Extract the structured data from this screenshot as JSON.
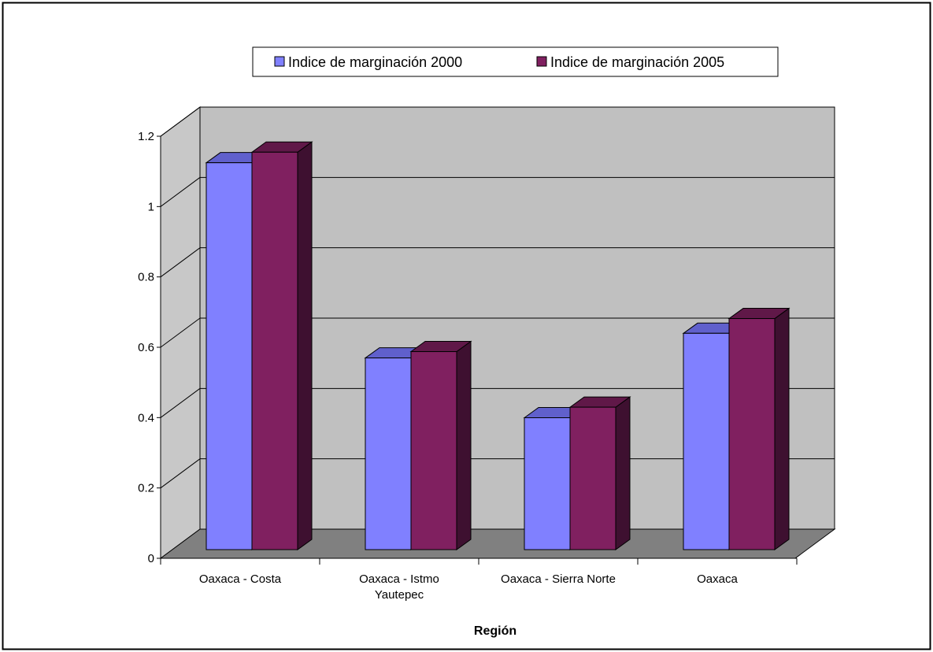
{
  "chart_data": {
    "type": "bar",
    "title": "",
    "xlabel": "Región",
    "ylabel": "",
    "categories": [
      [
        "Oaxaca - Costa"
      ],
      [
        "Oaxaca - Istmo",
        "Yautepec"
      ],
      [
        "Oaxaca - Sierra Norte"
      ],
      [
        "Oaxaca"
      ]
    ],
    "series": [
      {
        "name": "Indice de marginación 2000",
        "values": [
          1.1,
          0.545,
          0.375,
          0.615
        ]
      },
      {
        "name": "Indice de marginación 2005",
        "values": [
          1.13,
          0.563,
          0.405,
          0.657
        ]
      }
    ],
    "ylim": [
      0,
      1.2
    ],
    "yticks": [
      "0",
      "0.2",
      "0.4",
      "0.6",
      "0.8",
      "1",
      "1.2"
    ],
    "grid": true,
    "legend_position": "top",
    "colors": {
      "series_2000_front": "#8080ff",
      "series_2000_top": "#6060cc",
      "series_2000_side": "#40407f",
      "series_2005_front": "#802060",
      "series_2005_top": "#601848",
      "series_2005_side": "#3e1030",
      "back_wall": "#c0c0c0",
      "side_wall": "#c8c8c8",
      "floor": "#808080"
    }
  }
}
